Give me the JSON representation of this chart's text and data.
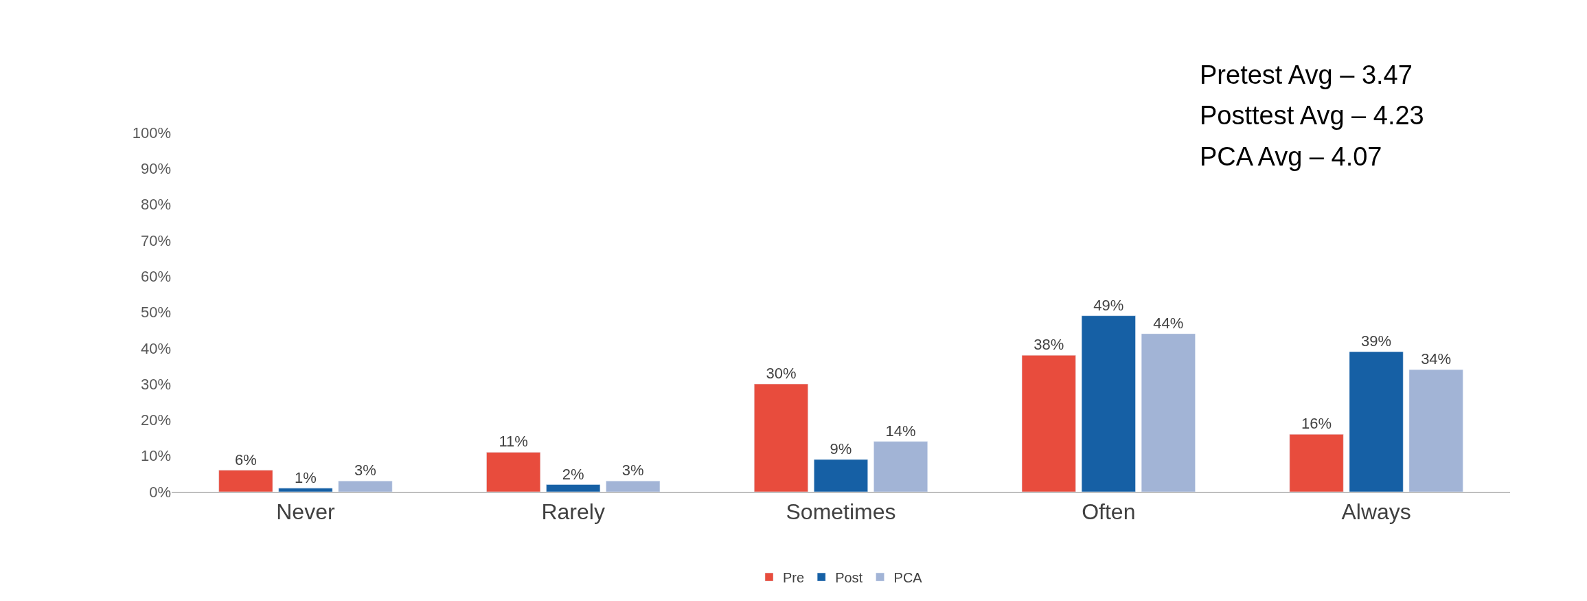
{
  "chart_data": {
    "type": "bar",
    "categories": [
      "Never",
      "Rarely",
      "Sometimes",
      "Often",
      "Always"
    ],
    "series": [
      {
        "name": "Pre",
        "color": "#e84c3d",
        "values": [
          6,
          11,
          30,
          38,
          16
        ],
        "value_labels": [
          "6%",
          "11%",
          "30%",
          "38%",
          "16%"
        ]
      },
      {
        "name": "Post",
        "color": "#1660a5",
        "values": [
          1,
          2,
          9,
          49,
          39
        ],
        "value_labels": [
          "1%",
          "2%",
          "9%",
          "49%",
          "39%"
        ]
      },
      {
        "name": "PCA",
        "color": "#a2b4d6",
        "values": [
          3,
          3,
          14,
          44,
          34
        ],
        "value_labels": [
          "3%",
          "3%",
          "14%",
          "44%",
          "34%"
        ]
      }
    ],
    "ylim": [
      0,
      100
    ],
    "yticks": [
      {
        "value": 0,
        "label": "0%"
      },
      {
        "value": 10,
        "label": "10%"
      },
      {
        "value": 20,
        "label": "20%"
      },
      {
        "value": 30,
        "label": "30%"
      },
      {
        "value": 40,
        "label": "40%"
      },
      {
        "value": 50,
        "label": "50%"
      },
      {
        "value": 60,
        "label": "60%"
      },
      {
        "value": 70,
        "label": "70%"
      },
      {
        "value": 80,
        "label": "80%"
      },
      {
        "value": 90,
        "label": "90%"
      },
      {
        "value": 100,
        "label": "100%"
      }
    ],
    "annotations": [
      "Pretest Avg – 3.47",
      "Posttest Avg – 4.23",
      "PCA Avg – 4.07"
    ],
    "legend": "bottom"
  }
}
